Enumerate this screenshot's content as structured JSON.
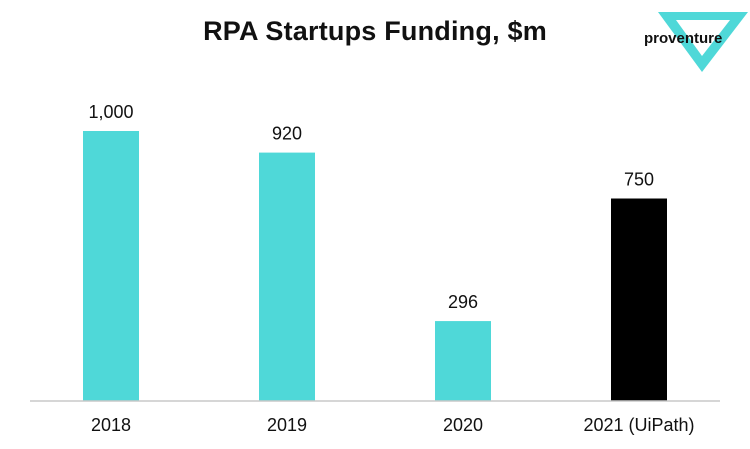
{
  "chart_data": {
    "type": "bar",
    "title": "RPA Startups Funding, $m",
    "categories": [
      "2018",
      "2019",
      "2020",
      "2021 (UiPath)"
    ],
    "values": [
      1000,
      920,
      296,
      750
    ],
    "data_labels": [
      "1,000",
      "920",
      "296",
      "750"
    ],
    "bar_colors": [
      "#4fd8d8",
      "#4fd8d8",
      "#4fd8d8",
      "#000000"
    ],
    "xlabel": "",
    "ylabel": "",
    "ylim": [
      0,
      1000
    ],
    "grid": false,
    "legend": "none"
  },
  "logo": {
    "text": "proventure",
    "color": "#4fd8d8"
  }
}
